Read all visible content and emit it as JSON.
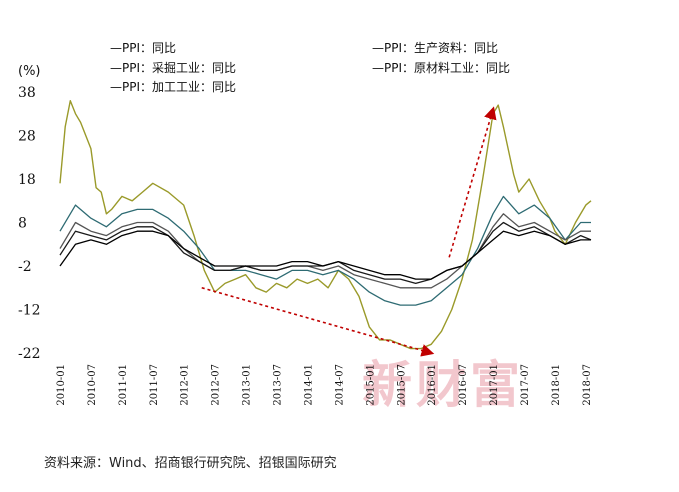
{
  "unit_label": "(%)",
  "source": "资料来源：Wind、招商银行研究院、招银国际研究",
  "watermark": "新财富",
  "colors": {
    "ppi": "#1a1a1a",
    "production": "#555555",
    "mining": "#9a9a2a",
    "raw": "#2e6b73",
    "processing": "#000000",
    "arrow": "#c00000"
  },
  "chart_data": {
    "type": "line",
    "ylim": [
      -22,
      38
    ],
    "yticks": [
      "38",
      "28",
      "18",
      "8",
      "-2",
      "-12",
      "-22"
    ],
    "yticks_values": [
      38,
      28,
      18,
      8,
      -2,
      -12,
      -22
    ],
    "xticks": [
      "2010-01",
      "2010-07",
      "2011-01",
      "2011-07",
      "2012-01",
      "2012-07",
      "2013-01",
      "2013-07",
      "2014-01",
      "2014-07",
      "2015-01",
      "2015-07",
      "2016-01",
      "2016-07",
      "2017-01",
      "2017-07",
      "2018-01",
      "2018-07"
    ],
    "legend": [
      {
        "key": "ppi",
        "label": "—PPI：同比"
      },
      {
        "key": "production",
        "label": "—PPI：生产资料：同比"
      },
      {
        "key": "mining",
        "label": "—PPI：采掘工业：同比"
      },
      {
        "key": "raw",
        "label": "—PPI：原材料工业：同比"
      },
      {
        "key": "processing",
        "label": "—PPI：加工工业：同比"
      }
    ],
    "legend_placement": "top",
    "grid": false,
    "series": [
      {
        "name": "PPI：采掘工业：同比",
        "key": "mining",
        "width": 1.4,
        "points": [
          [
            "2010-01",
            17
          ],
          [
            "2010-02",
            30
          ],
          [
            "2010-03",
            36
          ],
          [
            "2010-04",
            33
          ],
          [
            "2010-05",
            31
          ],
          [
            "2010-07",
            25
          ],
          [
            "2010-08",
            16
          ],
          [
            "2010-09",
            15
          ],
          [
            "2010-10",
            10
          ],
          [
            "2010-11",
            11
          ],
          [
            "2011-01",
            14
          ],
          [
            "2011-03",
            13
          ],
          [
            "2011-05",
            15
          ],
          [
            "2011-07",
            17
          ],
          [
            "2011-10",
            15
          ],
          [
            "2012-01",
            12
          ],
          [
            "2012-03",
            5
          ],
          [
            "2012-05",
            -3
          ],
          [
            "2012-07",
            -8
          ],
          [
            "2012-09",
            -6
          ],
          [
            "2012-11",
            -5
          ],
          [
            "2013-01",
            -4
          ],
          [
            "2013-03",
            -7
          ],
          [
            "2013-05",
            -8
          ],
          [
            "2013-07",
            -6
          ],
          [
            "2013-09",
            -7
          ],
          [
            "2013-11",
            -5
          ],
          [
            "2014-01",
            -6
          ],
          [
            "2014-03",
            -5
          ],
          [
            "2014-05",
            -7
          ],
          [
            "2014-07",
            -3
          ],
          [
            "2014-09",
            -5
          ],
          [
            "2014-11",
            -9
          ],
          [
            "2015-01",
            -16
          ],
          [
            "2015-03",
            -19
          ],
          [
            "2015-05",
            -19
          ],
          [
            "2015-07",
            -20
          ],
          [
            "2015-09",
            -21
          ],
          [
            "2015-11",
            -21
          ],
          [
            "2016-01",
            -20
          ],
          [
            "2016-03",
            -17
          ],
          [
            "2016-05",
            -12
          ],
          [
            "2016-07",
            -5
          ],
          [
            "2016-09",
            4
          ],
          [
            "2016-11",
            18
          ],
          [
            "2017-01",
            33
          ],
          [
            "2017-02",
            35
          ],
          [
            "2017-03",
            30
          ],
          [
            "2017-05",
            19
          ],
          [
            "2017-06",
            15
          ],
          [
            "2017-08",
            18
          ],
          [
            "2017-10",
            13
          ],
          [
            "2017-12",
            9
          ],
          [
            "2018-01",
            6
          ],
          [
            "2018-03",
            3
          ],
          [
            "2018-05",
            8
          ],
          [
            "2018-07",
            12
          ],
          [
            "2018-08",
            13
          ]
        ]
      },
      {
        "name": "PPI：原材料工业：同比",
        "key": "raw",
        "width": 1.3,
        "points": [
          [
            "2010-01",
            6
          ],
          [
            "2010-04",
            12
          ],
          [
            "2010-07",
            9
          ],
          [
            "2010-10",
            7
          ],
          [
            "2011-01",
            10
          ],
          [
            "2011-04",
            11
          ],
          [
            "2011-07",
            11
          ],
          [
            "2011-10",
            9
          ],
          [
            "2012-01",
            6
          ],
          [
            "2012-04",
            2
          ],
          [
            "2012-07",
            -3
          ],
          [
            "2012-10",
            -3
          ],
          [
            "2013-01",
            -3
          ],
          [
            "2013-04",
            -4
          ],
          [
            "2013-07",
            -5
          ],
          [
            "2013-10",
            -3
          ],
          [
            "2014-01",
            -3
          ],
          [
            "2014-04",
            -4
          ],
          [
            "2014-07",
            -3
          ],
          [
            "2014-10",
            -5
          ],
          [
            "2015-01",
            -8
          ],
          [
            "2015-04",
            -10
          ],
          [
            "2015-07",
            -11
          ],
          [
            "2015-10",
            -11
          ],
          [
            "2016-01",
            -10
          ],
          [
            "2016-04",
            -7
          ],
          [
            "2016-07",
            -4
          ],
          [
            "2016-10",
            2
          ],
          [
            "2017-01",
            10
          ],
          [
            "2017-03",
            14
          ],
          [
            "2017-06",
            10
          ],
          [
            "2017-09",
            12
          ],
          [
            "2017-12",
            9
          ],
          [
            "2018-03",
            4
          ],
          [
            "2018-06",
            8
          ],
          [
            "2018-08",
            8
          ]
        ]
      },
      {
        "name": "PPI：生产资料：同比",
        "key": "production",
        "width": 1.3,
        "points": [
          [
            "2010-01",
            2
          ],
          [
            "2010-04",
            8
          ],
          [
            "2010-07",
            6
          ],
          [
            "2010-10",
            5
          ],
          [
            "2011-01",
            7
          ],
          [
            "2011-04",
            8
          ],
          [
            "2011-07",
            8
          ],
          [
            "2011-10",
            6
          ],
          [
            "2012-01",
            2
          ],
          [
            "2012-04",
            -1
          ],
          [
            "2012-07",
            -3
          ],
          [
            "2012-10",
            -3
          ],
          [
            "2013-01",
            -2
          ],
          [
            "2013-04",
            -3
          ],
          [
            "2013-07",
            -3
          ],
          [
            "2013-10",
            -2
          ],
          [
            "2014-01",
            -2
          ],
          [
            "2014-04",
            -3
          ],
          [
            "2014-07",
            -2
          ],
          [
            "2014-10",
            -4
          ],
          [
            "2015-01",
            -5
          ],
          [
            "2015-04",
            -6
          ],
          [
            "2015-07",
            -7
          ],
          [
            "2015-10",
            -7
          ],
          [
            "2016-01",
            -7
          ],
          [
            "2016-04",
            -5
          ],
          [
            "2016-07",
            -2
          ],
          [
            "2016-10",
            1
          ],
          [
            "2017-01",
            7
          ],
          [
            "2017-03",
            10
          ],
          [
            "2017-06",
            7
          ],
          [
            "2017-09",
            8
          ],
          [
            "2017-12",
            6
          ],
          [
            "2018-03",
            4
          ],
          [
            "2018-06",
            6
          ],
          [
            "2018-08",
            6
          ]
        ]
      },
      {
        "name": "PPI：同比",
        "key": "ppi",
        "width": 1.3,
        "points": [
          [
            "2010-01",
            0.5
          ],
          [
            "2010-04",
            6
          ],
          [
            "2010-07",
            5
          ],
          [
            "2010-10",
            4
          ],
          [
            "2011-01",
            6
          ],
          [
            "2011-04",
            7
          ],
          [
            "2011-07",
            7
          ],
          [
            "2011-10",
            5
          ],
          [
            "2012-01",
            1
          ],
          [
            "2012-04",
            -1
          ],
          [
            "2012-07",
            -3
          ],
          [
            "2012-10",
            -3
          ],
          [
            "2013-01",
            -2
          ],
          [
            "2013-04",
            -3
          ],
          [
            "2013-07",
            -3
          ],
          [
            "2013-10",
            -2
          ],
          [
            "2014-01",
            -2
          ],
          [
            "2014-04",
            -2
          ],
          [
            "2014-07",
            -1
          ],
          [
            "2014-10",
            -3
          ],
          [
            "2015-01",
            -4
          ],
          [
            "2015-04",
            -5
          ],
          [
            "2015-07",
            -5
          ],
          [
            "2015-10",
            -6
          ],
          [
            "2016-01",
            -5
          ],
          [
            "2016-04",
            -3
          ],
          [
            "2016-07",
            -2
          ],
          [
            "2016-10",
            1
          ],
          [
            "2017-01",
            6
          ],
          [
            "2017-03",
            8
          ],
          [
            "2017-06",
            6
          ],
          [
            "2017-09",
            7
          ],
          [
            "2017-12",
            5
          ],
          [
            "2018-03",
            3
          ],
          [
            "2018-06",
            5
          ],
          [
            "2018-08",
            4
          ]
        ]
      },
      {
        "name": "PPI：加工工业：同比",
        "key": "processing",
        "width": 1.3,
        "points": [
          [
            "2010-01",
            -2
          ],
          [
            "2010-04",
            3
          ],
          [
            "2010-07",
            4
          ],
          [
            "2010-10",
            3
          ],
          [
            "2011-01",
            5
          ],
          [
            "2011-04",
            6
          ],
          [
            "2011-07",
            6
          ],
          [
            "2011-10",
            5
          ],
          [
            "2012-01",
            2
          ],
          [
            "2012-04",
            0
          ],
          [
            "2012-07",
            -2
          ],
          [
            "2012-10",
            -2
          ],
          [
            "2013-01",
            -2
          ],
          [
            "2013-04",
            -2
          ],
          [
            "2013-07",
            -2
          ],
          [
            "2013-10",
            -1
          ],
          [
            "2014-01",
            -1
          ],
          [
            "2014-04",
            -2
          ],
          [
            "2014-07",
            -1
          ],
          [
            "2014-10",
            -2
          ],
          [
            "2015-01",
            -3
          ],
          [
            "2015-04",
            -4
          ],
          [
            "2015-07",
            -4
          ],
          [
            "2015-10",
            -5
          ],
          [
            "2016-01",
            -5
          ],
          [
            "2016-04",
            -3
          ],
          [
            "2016-07",
            -2
          ],
          [
            "2016-10",
            1
          ],
          [
            "2017-01",
            4
          ],
          [
            "2017-03",
            6
          ],
          [
            "2017-06",
            5
          ],
          [
            "2017-09",
            6
          ],
          [
            "2017-12",
            5
          ],
          [
            "2018-03",
            3
          ],
          [
            "2018-06",
            4
          ],
          [
            "2018-08",
            4
          ]
        ]
      }
    ],
    "annotations": [
      {
        "type": "arrow",
        "from": [
          "2012-01",
          -7
        ],
        "to": [
          "2016-01",
          -22
        ]
      },
      {
        "type": "arrow",
        "from": [
          "2016-01",
          0
        ],
        "to": [
          "2017-01",
          34
        ]
      }
    ]
  }
}
